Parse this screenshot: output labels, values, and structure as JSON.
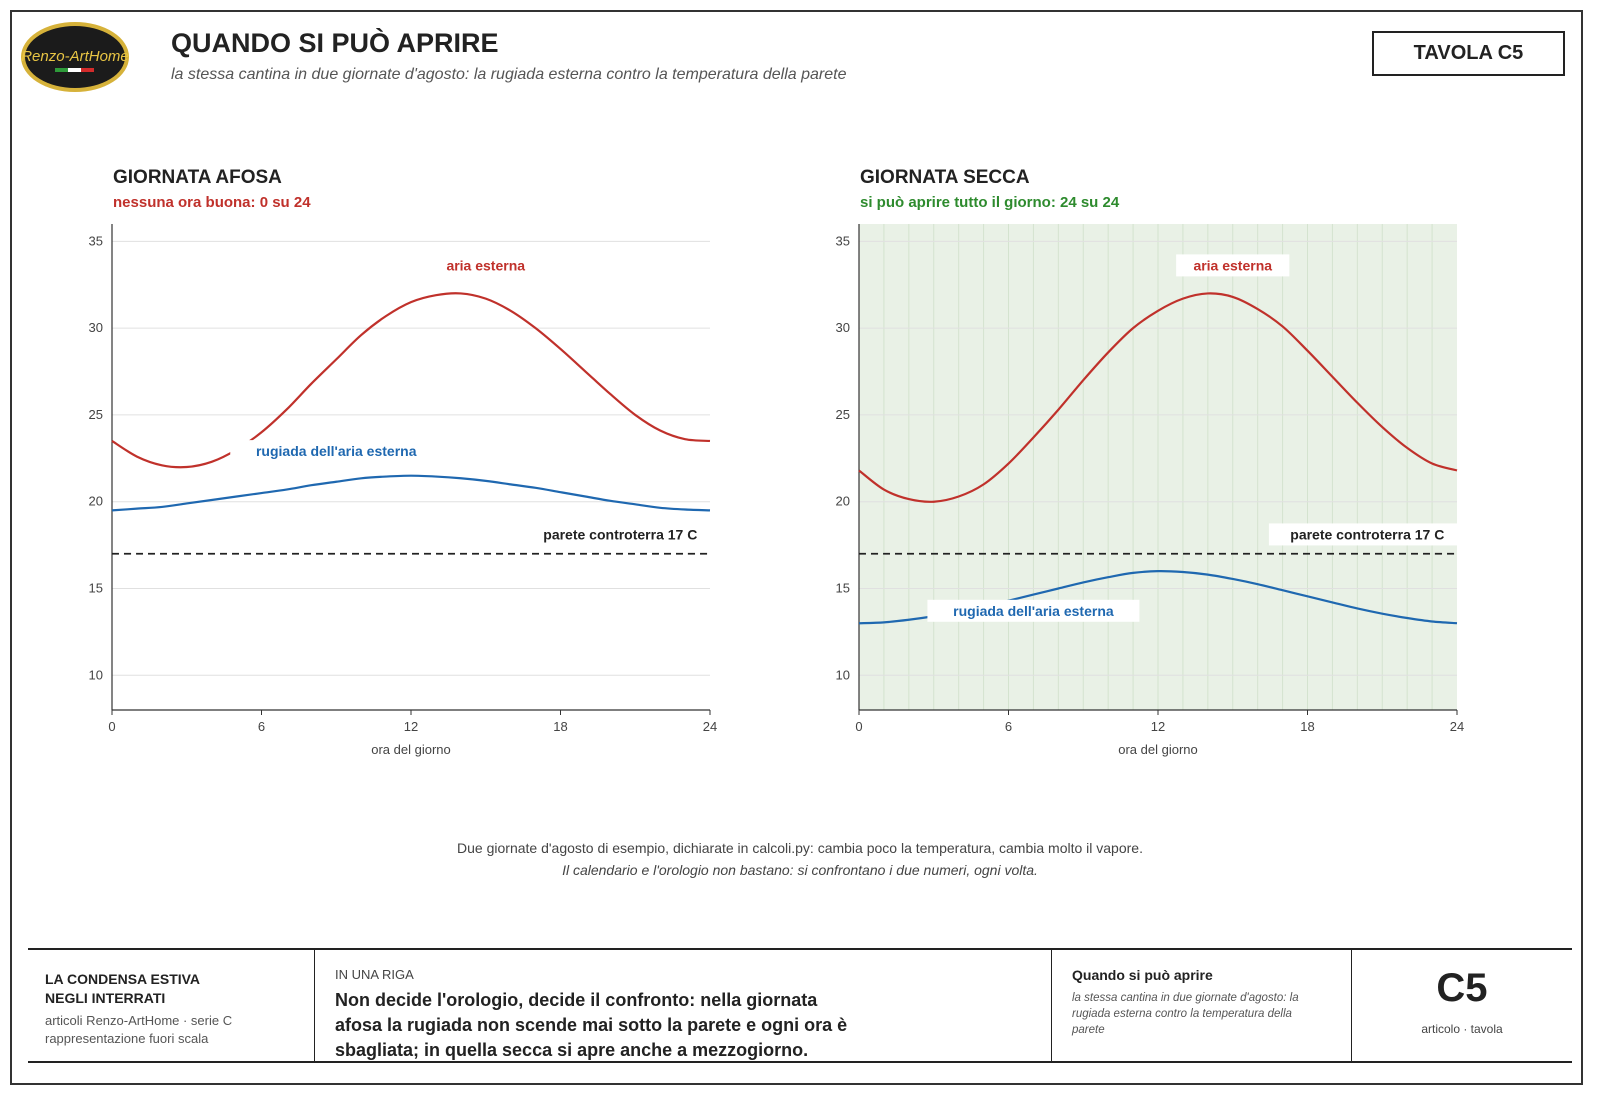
{
  "header": {
    "logo_text": "Renzo-ArtHome",
    "title": "QUANDO SI PUÒ APRIRE",
    "subtitle": "la stessa cantina in due giornate d'agosto: la rugiada esterna contro la temperatura della parete",
    "tavola": "TAVOLA C5"
  },
  "colors": {
    "air": "#c0312b",
    "dew": "#1f68b0",
    "wall": "#222222",
    "bad": "#c0312b",
    "good": "#2e8b2e",
    "ok_fill": "#e9f1e6"
  },
  "chart_data": [
    {
      "type": "line",
      "title": "GIORNATA AFOSA",
      "subtitle": "nessuna ora buona: 0 su 24",
      "verdict": "bad",
      "xlabel": "ora del giorno",
      "ylabel": "",
      "xlim": [
        0,
        24
      ],
      "ylim": [
        8,
        36
      ],
      "xticks": [
        0,
        6,
        12,
        18,
        24
      ],
      "yticks": [
        10,
        15,
        20,
        25,
        30,
        35
      ],
      "grid": "horizontal",
      "shaded_ok_hours": [],
      "x": [
        0,
        1,
        2,
        3,
        4,
        5,
        6,
        7,
        8,
        9,
        10,
        11,
        12,
        13,
        14,
        15,
        16,
        17,
        18,
        19,
        20,
        21,
        22,
        23,
        24
      ],
      "series": [
        {
          "name": "aria esterna",
          "role": "air",
          "values": [
            23.5,
            22.6,
            22.1,
            22.0,
            22.3,
            23.0,
            24.0,
            25.3,
            26.8,
            28.2,
            29.6,
            30.7,
            31.5,
            31.9,
            32.0,
            31.7,
            31.0,
            30.0,
            28.8,
            27.5,
            26.2,
            25.0,
            24.1,
            23.6,
            23.5
          ]
        },
        {
          "name": "rugiada dell'aria esterna",
          "role": "dew",
          "values": [
            19.5,
            19.6,
            19.7,
            19.9,
            20.1,
            20.3,
            20.5,
            20.7,
            20.95,
            21.15,
            21.35,
            21.45,
            21.5,
            21.45,
            21.35,
            21.2,
            21.0,
            20.8,
            20.55,
            20.3,
            20.05,
            19.85,
            19.65,
            19.55,
            19.5
          ]
        },
        {
          "name": "parete controterra 17 C",
          "role": "wall",
          "values": [
            17,
            17,
            17,
            17,
            17,
            17,
            17,
            17,
            17,
            17,
            17,
            17,
            17,
            17,
            17,
            17,
            17,
            17,
            17,
            17,
            17,
            17,
            17,
            17,
            17
          ]
        }
      ],
      "annotations": [
        {
          "series": "aria esterna",
          "x": 15,
          "y": 33.5
        },
        {
          "series": "rugiada dell'aria esterna",
          "x": 9,
          "y": 22.8
        },
        {
          "series": "parete controterra 17 C",
          "x": 20.4,
          "y": 18.0
        }
      ]
    },
    {
      "type": "line",
      "title": "GIORNATA SECCA",
      "subtitle": "si può aprire tutto il giorno: 24 su 24",
      "verdict": "good",
      "xlabel": "ora del giorno",
      "ylabel": "",
      "xlim": [
        0,
        24
      ],
      "ylim": [
        8,
        36
      ],
      "xticks": [
        0,
        6,
        12,
        18,
        24
      ],
      "yticks": [
        10,
        15,
        20,
        25,
        30,
        35
      ],
      "grid": "horizontal",
      "shaded_ok_hours": [
        0,
        24
      ],
      "x": [
        0,
        1,
        2,
        3,
        4,
        5,
        6,
        7,
        8,
        9,
        10,
        11,
        12,
        13,
        14,
        15,
        16,
        17,
        18,
        19,
        20,
        21,
        22,
        23,
        24
      ],
      "series": [
        {
          "name": "aria esterna",
          "role": "air",
          "values": [
            21.8,
            20.7,
            20.15,
            20.0,
            20.3,
            21.0,
            22.2,
            23.7,
            25.3,
            27.0,
            28.6,
            30.0,
            31.0,
            31.7,
            32.0,
            31.8,
            31.1,
            30.1,
            28.7,
            27.2,
            25.7,
            24.3,
            23.1,
            22.2,
            21.8
          ]
        },
        {
          "name": "rugiada dell'aria esterna",
          "role": "dew",
          "values": [
            13.0,
            13.05,
            13.2,
            13.4,
            13.65,
            13.95,
            14.3,
            14.65,
            15.0,
            15.35,
            15.65,
            15.9,
            16.0,
            15.95,
            15.8,
            15.55,
            15.25,
            14.9,
            14.55,
            14.2,
            13.85,
            13.55,
            13.3,
            13.1,
            13.0
          ]
        },
        {
          "name": "parete controterra 17 C",
          "role": "wall",
          "values": [
            17,
            17,
            17,
            17,
            17,
            17,
            17,
            17,
            17,
            17,
            17,
            17,
            17,
            17,
            17,
            17,
            17,
            17,
            17,
            17,
            17,
            17,
            17,
            17,
            17
          ]
        }
      ],
      "annotations": [
        {
          "series": "aria esterna",
          "x": 15,
          "y": 33.5
        },
        {
          "series": "rugiada dell'aria esterna",
          "x": 7,
          "y": 13.6
        },
        {
          "series": "parete controterra 17 C",
          "x": 20.4,
          "y": 18.0
        }
      ]
    }
  ],
  "notes": {
    "line1": "Due giornate d'agosto di esempio, dichiarate in calcoli.py: cambia poco la temperatura, cambia molto il vapore.",
    "line2": "Il calendario e l'orologio non bastano: si confrontano i due numeri, ogni volta."
  },
  "footer": {
    "series_title": "LA CONDENSA ESTIVA\nNEGLI INTERRATI",
    "series_sub": "articoli Renzo-ArtHome · serie C\nrappresentazione fuori scala",
    "oneliner_label": "IN UNA RIGA",
    "oneliner": "Non decide l'orologio, decide il confronto: nella giornata afosa la rugiada non scende mai sotto la parete e ogni ora è sbagliata; in quella secca si apre anche a mezzogiorno.",
    "sheet_title": "Quando si può aprire",
    "sheet_sub": "la stessa cantina in due giornate d'agosto: la rugiada esterna contro la temperatura della parete",
    "code": "C5",
    "code_sub": "articolo · tavola"
  }
}
